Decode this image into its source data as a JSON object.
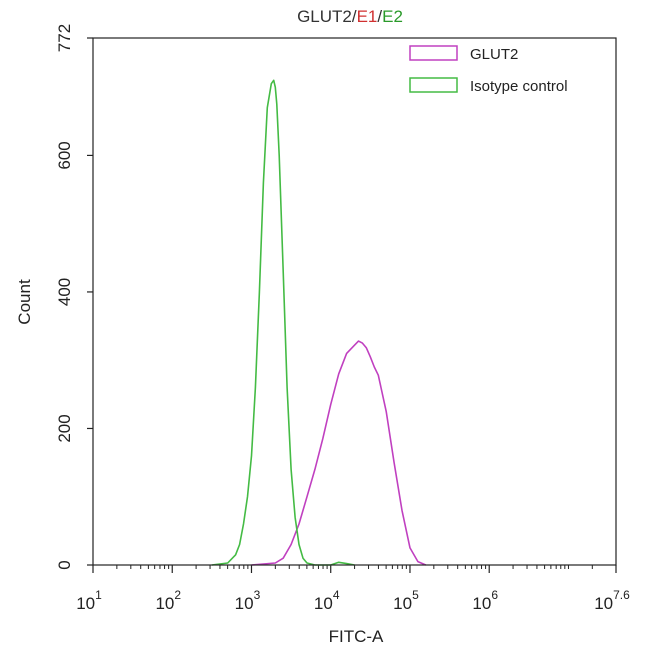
{
  "chart_data": {
    "type": "line",
    "title": {
      "parts": [
        {
          "text": "GLUT2",
          "color": "#333333"
        },
        {
          "text": "/",
          "color": "#333333"
        },
        {
          "text": "E1",
          "color": "#d03030"
        },
        {
          "text": "/",
          "color": "#333333"
        },
        {
          "text": "E2",
          "color": "#2a9a2a"
        }
      ]
    },
    "xlabel": "FITC-A",
    "ylabel": "Count",
    "x_scale": "log",
    "xlim": [
      10,
      39810717
    ],
    "ylim": [
      0,
      772
    ],
    "x_ticks": [
      {
        "value": 10,
        "base": "10",
        "exp": "1"
      },
      {
        "value": 100,
        "base": "10",
        "exp": "2"
      },
      {
        "value": 1000,
        "base": "10",
        "exp": "3"
      },
      {
        "value": 10000,
        "base": "10",
        "exp": "4"
      },
      {
        "value": 100000,
        "base": "10",
        "exp": "5"
      },
      {
        "value": 1000000,
        "base": "10",
        "exp": "6"
      },
      {
        "value": 39810717,
        "base": "10",
        "exp": "7.6"
      }
    ],
    "y_ticks": [
      {
        "value": 0,
        "label": "0"
      },
      {
        "value": 200,
        "label": "200"
      },
      {
        "value": 400,
        "label": "400"
      },
      {
        "value": 600,
        "label": "600"
      },
      {
        "value": 772,
        "label": "772"
      }
    ],
    "legend_position": "top-right",
    "series": [
      {
        "name": "GLUT2",
        "color": "#c040c0",
        "x": [
          1000,
          1995,
          2512,
          3162,
          3981,
          5012,
          6310,
          7943,
          10000,
          12589,
          15849,
          19953,
          22387,
          25119,
          28184,
          31623,
          35481,
          39811,
          50119,
          63096,
          79433,
          100000,
          125893,
          158489
        ],
        "y": [
          0,
          3,
          10,
          30,
          60,
          100,
          140,
          185,
          235,
          280,
          310,
          322,
          328,
          325,
          318,
          305,
          290,
          278,
          225,
          150,
          80,
          25,
          5,
          0
        ]
      },
      {
        "name": "Isotype control",
        "color": "#44bb44",
        "x": [
          316,
          501,
          631,
          708,
          794,
          891,
          1000,
          1122,
          1259,
          1413,
          1585,
          1778,
          1905,
          1995,
          2089,
          2239,
          2512,
          2818,
          3162,
          3548,
          3981,
          4467,
          5012,
          6310,
          10000,
          12589,
          15849,
          19953
        ],
        "y": [
          0,
          3,
          15,
          30,
          60,
          100,
          160,
          260,
          400,
          560,
          670,
          705,
          710,
          700,
          675,
          600,
          430,
          260,
          140,
          70,
          30,
          10,
          3,
          0,
          0,
          4,
          2,
          0
        ]
      }
    ]
  }
}
